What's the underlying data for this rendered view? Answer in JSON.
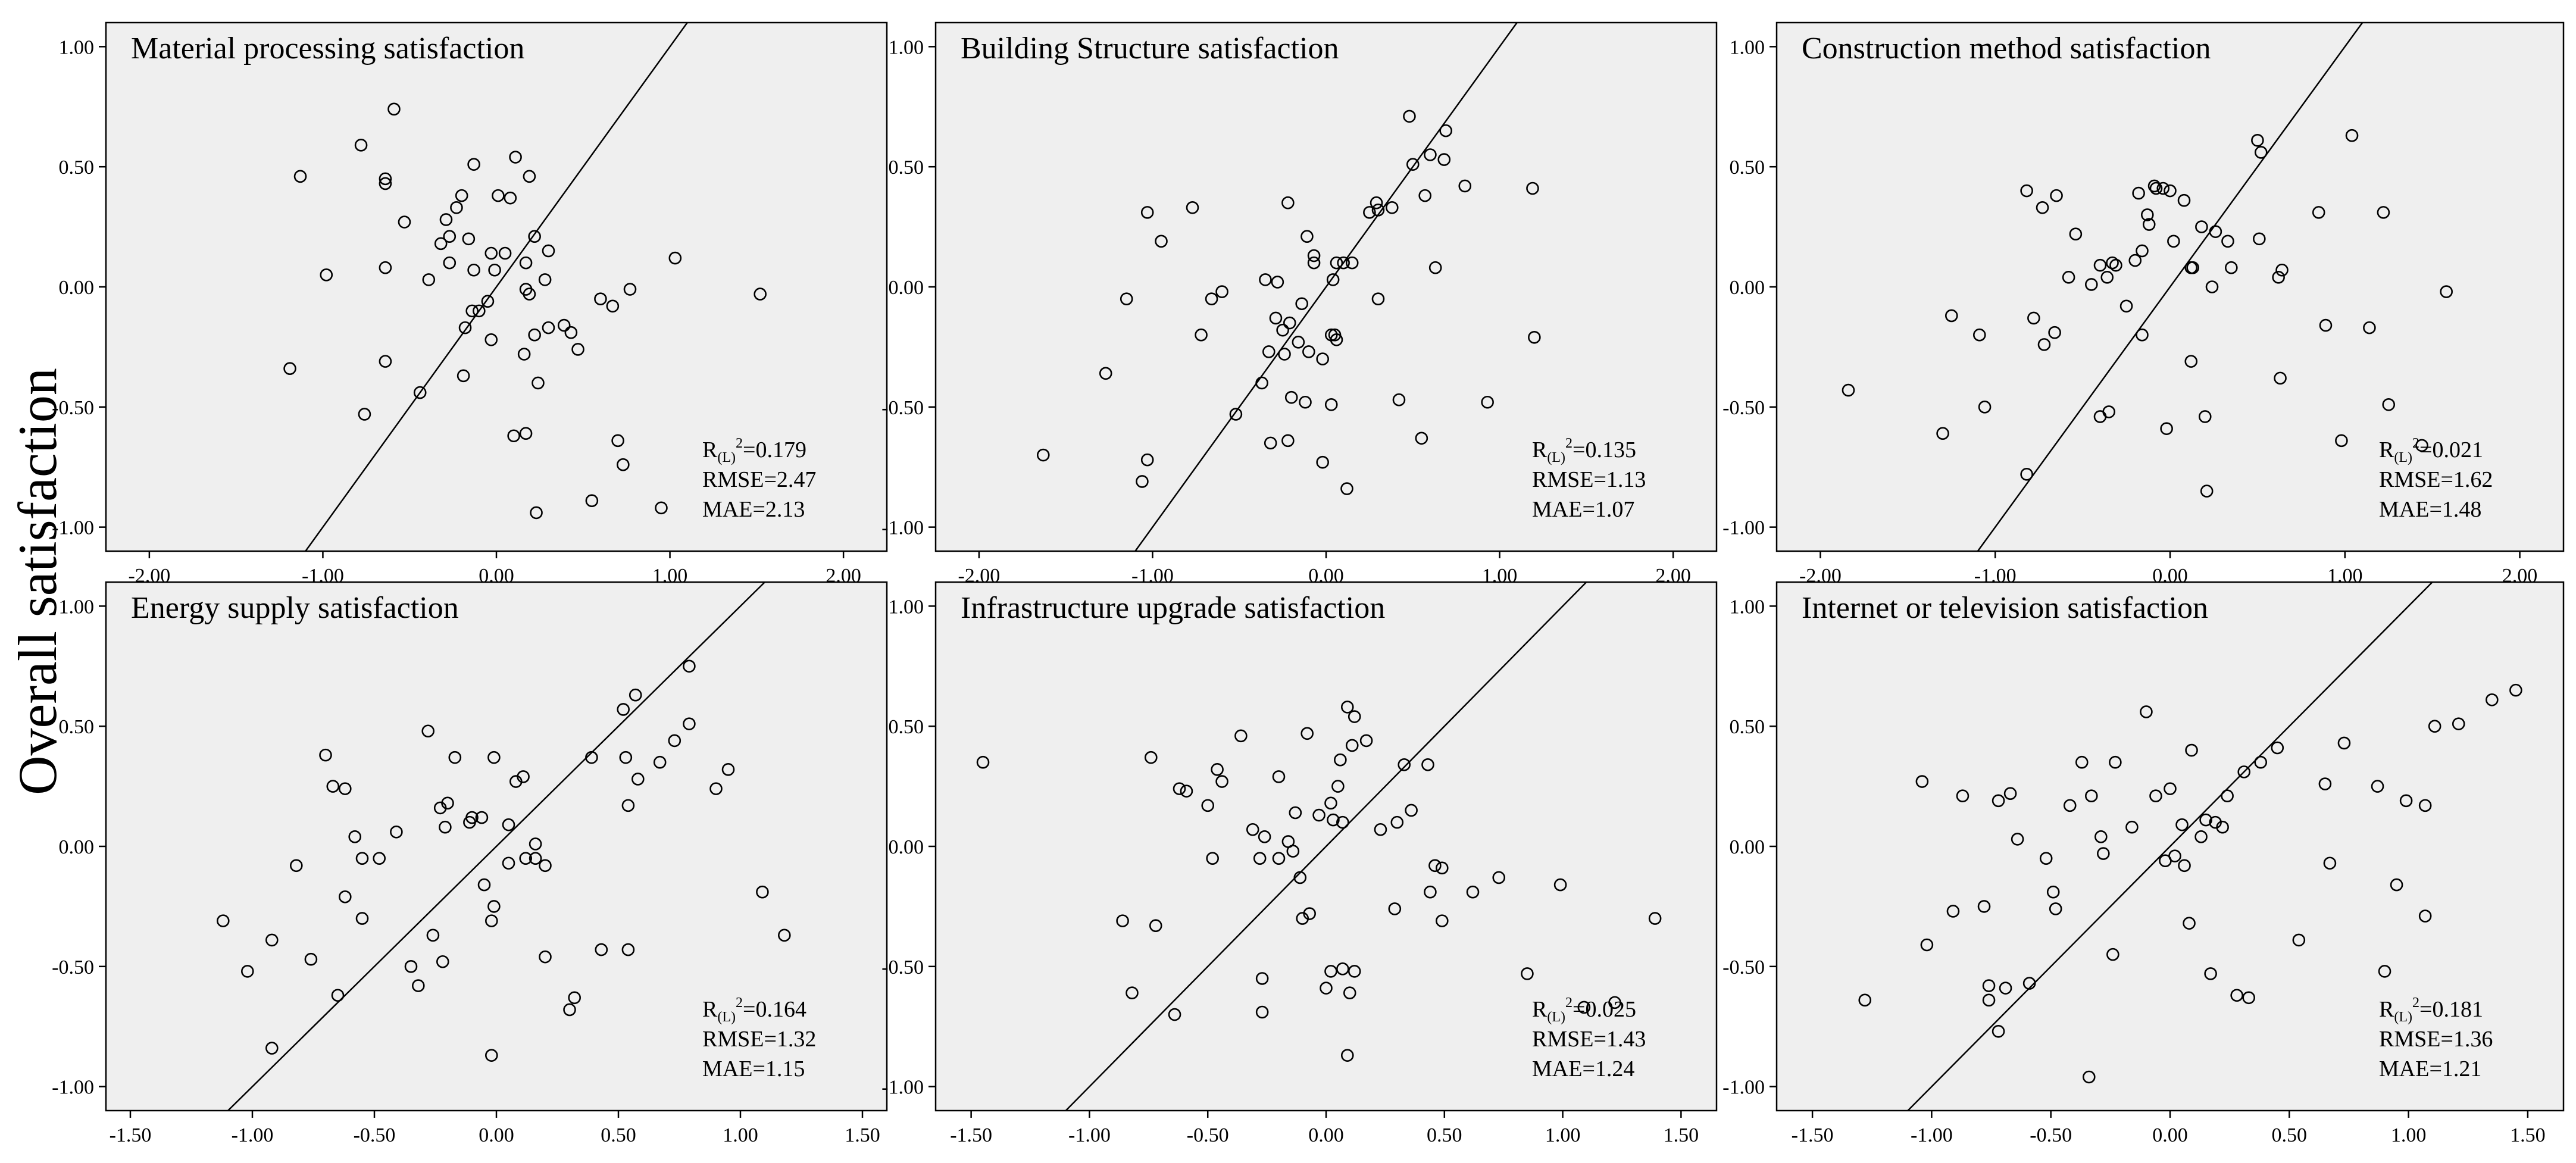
{
  "figure": {
    "ylabel": "Overall satisfaction"
  },
  "chart_data": [
    {
      "type": "scatter",
      "title": "Material processing satisfaction",
      "xlabel": "",
      "ylabel": "Overall satisfaction",
      "xlim": [
        -2.25,
        2.25
      ],
      "ylim": [
        -1.1,
        1.1
      ],
      "xticks": [
        -2.0,
        -1.0,
        0.0,
        1.0,
        2.0
      ],
      "xtick_labels": [
        "-2.00",
        "-1.00",
        "0.00",
        "1.00",
        "2.00"
      ],
      "yticks": [
        1.0,
        0.5,
        0.0,
        -0.5,
        -1.0
      ],
      "ytick_labels": [
        "1.00",
        "0.50",
        "0.00",
        "-0.50",
        "-1.00"
      ],
      "reference_line": "y = x",
      "stats": [
        "=0.179",
        "RMSE=2.47",
        "MAE=2.13"
      ],
      "x": [
        -0.59,
        -0.78,
        -0.64,
        -0.64,
        -1.13,
        -0.53,
        -0.23,
        -0.29,
        -0.13,
        -0.2,
        0.01,
        0.08,
        0.11,
        0.19,
        -0.27,
        -0.32,
        -0.16,
        0.05,
        -0.39,
        -0.27,
        -0.13,
        -0.03,
        0.22,
        0.3,
        -0.01,
        0.28,
        0.17,
        0.17,
        -0.14,
        -0.05,
        -0.98,
        -0.64,
        -1.19,
        -0.64,
        -0.44,
        -0.76,
        -0.18,
        -0.1,
        0.19,
        -0.03,
        -0.19,
        0.16,
        0.3,
        0.43,
        0.39,
        0.47,
        0.6,
        0.67,
        0.77,
        1.03,
        1.52,
        0.7,
        0.24,
        0.1,
        0.17,
        0.23,
        0.73,
        0.55,
        0.95,
        0.22
      ],
      "y": [
        0.74,
        0.59,
        0.45,
        0.43,
        0.46,
        0.27,
        0.33,
        0.28,
        0.51,
        0.38,
        0.38,
        0.37,
        0.54,
        0.46,
        0.21,
        0.18,
        0.2,
        0.14,
        0.03,
        0.1,
        0.07,
        0.14,
        0.21,
        0.15,
        0.07,
        0.03,
        0.1,
        -0.01,
        -0.1,
        -0.06,
        0.05,
        0.08,
        -0.34,
        -0.31,
        -0.44,
        -0.53,
        -0.17,
        -0.1,
        -0.03,
        -0.22,
        -0.37,
        -0.28,
        -0.17,
        -0.19,
        -0.16,
        -0.26,
        -0.05,
        -0.08,
        -0.01,
        0.12,
        -0.03,
        -0.64,
        -0.4,
        -0.62,
        -0.61,
        -0.94,
        -0.74,
        -0.89,
        -0.92,
        -0.2
      ]
    },
    {
      "type": "scatter",
      "title": "Building Structure satisfaction",
      "xlabel": "",
      "ylabel": "",
      "xlim": [
        -2.25,
        2.25
      ],
      "ylim": [
        -1.1,
        1.1
      ],
      "xticks": [
        -2.0,
        -1.0,
        0.0,
        1.0,
        2.0
      ],
      "xtick_labels": [
        "-2.00",
        "-1.00",
        "0.00",
        "1.00",
        "2.00"
      ],
      "yticks": [
        1.0,
        0.5,
        0.0,
        -0.5,
        -1.0
      ],
      "ytick_labels": [
        "1.00",
        "0.50",
        "0.00",
        "-0.50",
        "-1.00"
      ],
      "reference_line": "y = x",
      "stats": [
        "=0.135",
        "RMSE=1.13",
        "MAE=1.07"
      ],
      "x": [
        -1.63,
        -1.06,
        -1.03,
        -0.77,
        -0.6,
        -0.52,
        -0.35,
        -0.28,
        -0.24,
        -0.22,
        -0.14,
        -0.11,
        -0.07,
        -0.07,
        0.04,
        0.06,
        0.1,
        0.15,
        0.25,
        0.29,
        0.3,
        0.38,
        0.48,
        0.5,
        0.57,
        0.6,
        0.68,
        0.69,
        0.8,
        1.19,
        -1.03,
        -1.15,
        -0.66,
        -0.72,
        -0.25,
        -0.29,
        -0.21,
        -0.16,
        -0.1,
        -0.02,
        0.03,
        0.06,
        0.3,
        0.63,
        0.03,
        -0.22,
        0.05,
        0.12,
        0.42,
        0.55,
        0.93,
        1.2,
        -1.27,
        -0.95,
        -0.37,
        -0.33,
        -0.32,
        -0.2,
        -0.12,
        -0.02
      ],
      "y": [
        -0.7,
        -0.81,
        -0.72,
        0.33,
        -0.02,
        -0.53,
        0.03,
        0.02,
        -0.28,
        0.35,
        -0.07,
        0.21,
        0.13,
        0.1,
        0.03,
        0.1,
        0.1,
        0.1,
        0.31,
        0.35,
        0.32,
        0.33,
        0.71,
        0.51,
        0.38,
        0.55,
        0.53,
        0.65,
        0.42,
        0.41,
        0.31,
        -0.05,
        -0.05,
        -0.2,
        -0.18,
        -0.13,
        -0.15,
        -0.23,
        -0.27,
        -0.3,
        -0.2,
        -0.22,
        -0.05,
        0.08,
        -0.49,
        -0.64,
        -0.2,
        -0.84,
        -0.47,
        -0.63,
        -0.48,
        -0.21,
        -0.36,
        0.19,
        -0.4,
        -0.27,
        -0.65,
        -0.46,
        -0.48,
        -0.73
      ]
    },
    {
      "type": "scatter",
      "title": "Construction method  satisfaction",
      "xlabel": "",
      "ylabel": "",
      "xlim": [
        -2.25,
        2.25
      ],
      "ylim": [
        -1.1,
        1.1
      ],
      "xticks": [
        -2.0,
        -1.0,
        0.0,
        1.0,
        2.0
      ],
      "xtick_labels": [
        "-2.00",
        "-1.00",
        "0.00",
        "1.00",
        "2.00"
      ],
      "yticks": [
        1.0,
        0.5,
        0.0,
        -0.5,
        -1.0
      ],
      "ytick_labels": [
        "1.00",
        "0.50",
        "0.00",
        "-0.50",
        "-1.00"
      ],
      "reference_line": "y = x",
      "stats": [
        "=0.021",
        "RMSE=1.62",
        "MAE=1.48"
      ],
      "x": [
        -1.84,
        -1.3,
        -1.25,
        -1.09,
        -1.06,
        -0.78,
        -0.72,
        -0.66,
        -0.58,
        -0.54,
        -0.4,
        -0.36,
        -0.31,
        -0.2,
        -0.18,
        -0.12,
        -0.09,
        -0.04,
        0.02,
        0.08,
        0.13,
        0.18,
        0.26,
        0.33,
        0.5,
        0.52,
        0.62,
        0.85,
        1.04,
        1.22,
        -0.82,
        -0.73,
        -0.65,
        -0.45,
        -0.33,
        -0.25,
        -0.16,
        -0.13,
        -0.08,
        0.0,
        0.12,
        0.24,
        0.35,
        0.51,
        0.63,
        0.89,
        1.25,
        1.58,
        1.44,
        0.98,
        0.64,
        0.2,
        -0.02,
        -0.35,
        -0.4,
        -0.82,
        0.12,
        -0.16,
        0.21,
        1.14
      ],
      "y": [
        -0.43,
        -0.61,
        -0.12,
        -0.2,
        -0.5,
        -0.13,
        -0.24,
        -0.19,
        0.04,
        0.22,
        0.09,
        0.04,
        0.09,
        0.11,
        0.39,
        0.26,
        0.42,
        0.41,
        0.19,
        0.36,
        0.08,
        0.25,
        0.23,
        0.19,
        0.61,
        0.56,
        0.04,
        0.31,
        0.63,
        0.31,
        0.4,
        0.33,
        0.38,
        0.01,
        0.1,
        -0.08,
        0.15,
        0.3,
        0.41,
        0.4,
        0.08,
        0.0,
        0.08,
        0.2,
        -0.38,
        -0.16,
        -0.49,
        -0.02,
        -0.66,
        -0.64,
        0.07,
        -0.54,
        -0.59,
        -0.52,
        -0.54,
        -0.78,
        -0.31,
        -0.2,
        -0.85,
        -0.17
      ]
    },
    {
      "type": "scatter",
      "title": "Energy supply satisfaction",
      "xlabel": "",
      "ylabel": "Overall satisfaction",
      "xlim": [
        -1.6,
        1.6
      ],
      "ylim": [
        -1.1,
        1.1
      ],
      "xticks": [
        -1.5,
        -1.0,
        -0.5,
        0.0,
        0.5,
        1.0,
        1.5
      ],
      "xtick_labels": [
        "-1.50",
        "-1.00",
        "-0.50",
        "0.00",
        "0.50",
        "1.00",
        "1.50"
      ],
      "yticks": [
        1.0,
        0.5,
        0.0,
        -0.5,
        -1.0
      ],
      "ytick_labels": [
        "1.00",
        "0.50",
        "0.00",
        "-0.50",
        "-1.00"
      ],
      "reference_line": "y = x",
      "stats": [
        "=0.164",
        "RMSE=1.32",
        "MAE=1.15"
      ],
      "x": [
        -1.12,
        -1.02,
        -0.92,
        -0.82,
        -0.76,
        -0.7,
        -0.67,
        -0.62,
        -0.58,
        -0.55,
        -0.48,
        -0.41,
        -0.35,
        -0.32,
        -0.26,
        -0.22,
        -0.2,
        -0.17,
        -0.11,
        -0.05,
        -0.01,
        0.05,
        0.11,
        0.16,
        0.2,
        0.32,
        0.43,
        0.53,
        0.58,
        0.67,
        0.73,
        0.79,
        0.9,
        0.95,
        1.09,
        1.18,
        -0.92,
        -0.65,
        -0.62,
        -0.55,
        -0.28,
        -0.23,
        -0.21,
        -0.1,
        -0.06,
        -0.01,
        0.05,
        0.08,
        0.12,
        0.2,
        0.39,
        0.52,
        0.54,
        0.57,
        0.79,
        -0.02,
        0.54,
        0.3,
        -0.02,
        0.16
      ],
      "y": [
        -0.31,
        -0.52,
        -0.39,
        -0.08,
        -0.47,
        0.38,
        0.25,
        0.24,
        0.04,
        -0.05,
        -0.05,
        0.06,
        -0.5,
        -0.58,
        -0.37,
        -0.48,
        0.18,
        0.37,
        0.1,
        -0.16,
        0.37,
        -0.07,
        0.29,
        0.01,
        -0.08,
        -0.63,
        -0.43,
        0.37,
        0.28,
        0.35,
        0.44,
        0.51,
        0.24,
        0.32,
        -0.19,
        -0.37,
        -0.84,
        -0.62,
        -0.21,
        -0.3,
        0.48,
        0.16,
        0.08,
        0.12,
        0.12,
        -0.25,
        0.09,
        0.27,
        -0.05,
        -0.46,
        0.37,
        0.57,
        0.17,
        0.63,
        0.75,
        -0.87,
        -0.43,
        -0.68,
        -0.31,
        -0.05
      ]
    },
    {
      "type": "scatter",
      "title": "Infrastructure upgrade satisfaction",
      "xlabel": "",
      "ylabel": "",
      "xlim": [
        -1.65,
        1.65
      ],
      "ylim": [
        -1.1,
        1.1
      ],
      "xticks": [
        -1.5,
        -1.0,
        -0.5,
        0.0,
        0.5,
        1.0,
        1.5
      ],
      "xtick_labels": [
        "-1.50",
        "-1.00",
        "-0.50",
        "0.00",
        "0.50",
        "1.00",
        "1.50"
      ],
      "yticks": [
        1.0,
        0.5,
        0.0,
        -0.5,
        -1.0
      ],
      "ytick_labels": [
        "1.00",
        "0.50",
        "0.00",
        "-0.50",
        "-1.00"
      ],
      "reference_line": "y = x",
      "stats": [
        "=0.025",
        "RMSE=1.43",
        "MAE=1.24"
      ],
      "x": [
        -1.45,
        -0.86,
        -0.82,
        -0.74,
        -0.72,
        -0.62,
        -0.59,
        -0.5,
        -0.46,
        -0.44,
        -0.36,
        -0.31,
        -0.28,
        -0.26,
        -0.2,
        -0.14,
        -0.13,
        -0.08,
        -0.03,
        0.03,
        0.05,
        0.06,
        0.09,
        0.12,
        0.17,
        0.23,
        0.29,
        0.33,
        0.43,
        0.49,
        0.62,
        0.73,
        0.85,
        0.99,
        1.09,
        1.22,
        1.39,
        -0.64,
        -0.27,
        -0.2,
        -0.16,
        -0.11,
        -0.07,
        0.02,
        0.07,
        0.11,
        0.3,
        0.46,
        -0.27,
        -0.1,
        0.0,
        0.07,
        0.12,
        0.36,
        0.44,
        0.02,
        0.09,
        0.49,
        0.1,
        -0.48
      ],
      "y": [
        0.35,
        -0.31,
        -0.61,
        0.37,
        -0.33,
        0.24,
        0.23,
        0.17,
        0.32,
        0.27,
        0.46,
        0.07,
        -0.05,
        0.04,
        0.29,
        -0.02,
        0.14,
        0.47,
        0.13,
        0.11,
        0.25,
        0.36,
        0.58,
        0.54,
        0.44,
        0.07,
        -0.26,
        0.34,
        0.34,
        -0.09,
        -0.19,
        -0.13,
        -0.53,
        -0.16,
        -0.67,
        -0.65,
        -0.3,
        -0.7,
        -0.55,
        -0.05,
        0.02,
        -0.13,
        -0.28,
        0.18,
        0.1,
        0.42,
        0.1,
        -0.08,
        -0.69,
        -0.3,
        -0.59,
        -0.51,
        -0.52,
        0.15,
        -0.19,
        -0.52,
        -0.87,
        -0.31,
        -0.61,
        -0.05
      ]
    },
    {
      "type": "scatter",
      "title": "Internet or television satisfaction",
      "xlabel": "",
      "ylabel": "",
      "xlim": [
        -1.65,
        1.65
      ],
      "ylim": [
        -1.1,
        1.1
      ],
      "xticks": [
        -1.5,
        -1.0,
        -0.5,
        0.0,
        0.5,
        1.0,
        1.5
      ],
      "xtick_labels": [
        "-1.50",
        "-1.00",
        "-0.50",
        "0.00",
        "0.50",
        "1.00",
        "1.50"
      ],
      "yticks": [
        1.0,
        0.5,
        0.0,
        -0.5,
        -1.0
      ],
      "ytick_labels": [
        "1.00",
        "0.50",
        "0.00",
        "-0.50",
        "-1.00"
      ],
      "reference_line": "y = x",
      "stats": [
        "=0.181",
        "RMSE=1.36",
        "MAE=1.21"
      ],
      "x": [
        -1.28,
        -1.02,
        -0.91,
        -0.78,
        -0.76,
        -0.72,
        -0.67,
        -0.64,
        -0.59,
        -0.52,
        -0.48,
        -0.42,
        -0.37,
        -0.29,
        -0.23,
        -0.16,
        -0.1,
        -0.06,
        0.0,
        0.05,
        0.09,
        0.13,
        0.19,
        0.24,
        0.31,
        0.38,
        0.45,
        0.65,
        0.73,
        0.87,
        0.99,
        1.11,
        1.21,
        1.35,
        1.45,
        -1.04,
        -0.87,
        -0.76,
        -0.69,
        -0.33,
        -0.28,
        -0.02,
        0.08,
        0.15,
        0.22,
        0.67,
        0.95,
        1.07,
        -0.72,
        -0.49,
        -0.24,
        0.02,
        0.06,
        0.17,
        0.28,
        0.33,
        0.54,
        0.9,
        1.07,
        -0.34
      ],
      "y": [
        -0.64,
        -0.41,
        -0.27,
        -0.25,
        -0.58,
        0.19,
        0.22,
        0.03,
        -0.57,
        -0.05,
        -0.26,
        0.17,
        0.35,
        0.04,
        0.35,
        0.08,
        0.56,
        0.21,
        0.24,
        0.09,
        0.4,
        0.04,
        0.1,
        0.21,
        0.31,
        0.35,
        0.41,
        0.26,
        0.43,
        0.25,
        0.19,
        0.5,
        0.51,
        0.61,
        0.65,
        0.27,
        0.21,
        -0.64,
        -0.59,
        0.21,
        -0.03,
        -0.06,
        -0.32,
        0.11,
        0.08,
        -0.07,
        -0.16,
        0.17,
        -0.77,
        -0.19,
        -0.45,
        -0.04,
        -0.08,
        -0.53,
        -0.62,
        -0.63,
        -0.39,
        -0.52,
        -0.29,
        -0.96
      ]
    }
  ]
}
